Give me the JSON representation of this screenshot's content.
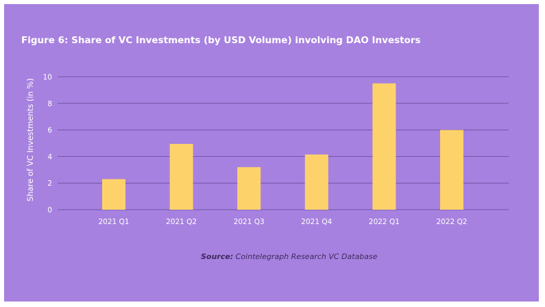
{
  "chart_data": {
    "type": "bar",
    "title": "Figure 6: Share of VC Investments (by USD Volume) involving DAO Investors",
    "ylabel": "Share of VC Investments (in %)",
    "xlabel": "",
    "categories": [
      "2021 Q1",
      "2021 Q2",
      "2021 Q3",
      "2021 Q4",
      "2022 Q1",
      "2022 Q2"
    ],
    "values": [
      2.3,
      4.95,
      3.2,
      4.15,
      9.5,
      6.0
    ],
    "ylim": [
      0,
      10
    ],
    "yticks": [
      "0",
      "2",
      "4",
      "6",
      "8",
      "10"
    ],
    "grid": true,
    "legend": "none"
  },
  "source": {
    "prefix": "Source:",
    "text": "Cointelegraph Research VC Database"
  },
  "colors": {
    "background": "#a781df",
    "bar": "#fdd26b",
    "grid": "#6f55a6",
    "text": "#ffffff"
  }
}
